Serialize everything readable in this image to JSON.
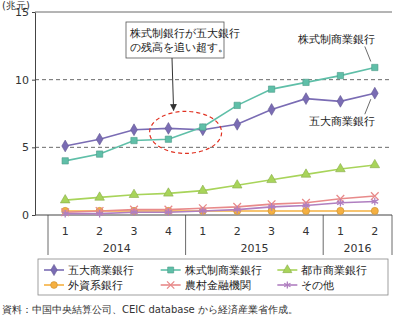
{
  "chart_data": {
    "type": "line",
    "y_label": "(兆元)",
    "categories": [
      "1",
      "2",
      "3",
      "4",
      "1",
      "2",
      "3",
      "4",
      "1",
      "2"
    ],
    "category_groups": [
      {
        "label": "2014",
        "count": 4
      },
      {
        "label": "2015",
        "count": 4
      },
      {
        "label": "2016",
        "count": 2
      }
    ],
    "series": [
      {
        "name": "五大商業銀行",
        "color": "#7a6cb4",
        "marker": "diamond",
        "values": [
          5.1,
          5.6,
          6.3,
          6.4,
          6.3,
          6.7,
          7.8,
          8.6,
          8.4,
          9.0
        ]
      },
      {
        "name": "株式制商業銀行",
        "color": "#5fbfa8",
        "marker": "square",
        "values": [
          4.0,
          4.5,
          5.5,
          5.6,
          6.5,
          8.1,
          9.3,
          9.8,
          10.3,
          10.9
        ]
      },
      {
        "name": "都市商業銀行",
        "color": "#a8d45a",
        "marker": "triangle",
        "values": [
          1.1,
          1.3,
          1.5,
          1.6,
          1.8,
          2.2,
          2.6,
          3.0,
          3.4,
          3.7
        ]
      },
      {
        "name": "外資系銀行",
        "color": "#f5b041",
        "marker": "circle",
        "values": [
          0.3,
          0.3,
          0.3,
          0.3,
          0.3,
          0.3,
          0.3,
          0.3,
          0.3,
          0.3
        ]
      },
      {
        "name": "農村金融機関",
        "color": "#e88a8a",
        "marker": "x",
        "values": [
          0.2,
          0.3,
          0.4,
          0.4,
          0.5,
          0.6,
          0.8,
          0.9,
          1.2,
          1.4
        ]
      },
      {
        "name": "その他",
        "color": "#b07fc0",
        "marker": "asterisk",
        "values": [
          0.1,
          0.1,
          0.2,
          0.2,
          0.3,
          0.4,
          0.6,
          0.7,
          0.9,
          1.0
        ]
      }
    ],
    "ylim": [
      0,
      15
    ],
    "yticks": [
      0,
      5,
      10,
      15
    ],
    "grid": true,
    "legend": "bottom",
    "annotations": [
      {
        "text": "株式制銀行が五大銀行の残高を追い超す。"
      },
      {
        "text": "株式制商業銀行"
      },
      {
        "text": "五大商業銀行"
      }
    ],
    "source": "資料：中国中央結算公司、CEIC database から経済産業省作成。"
  }
}
